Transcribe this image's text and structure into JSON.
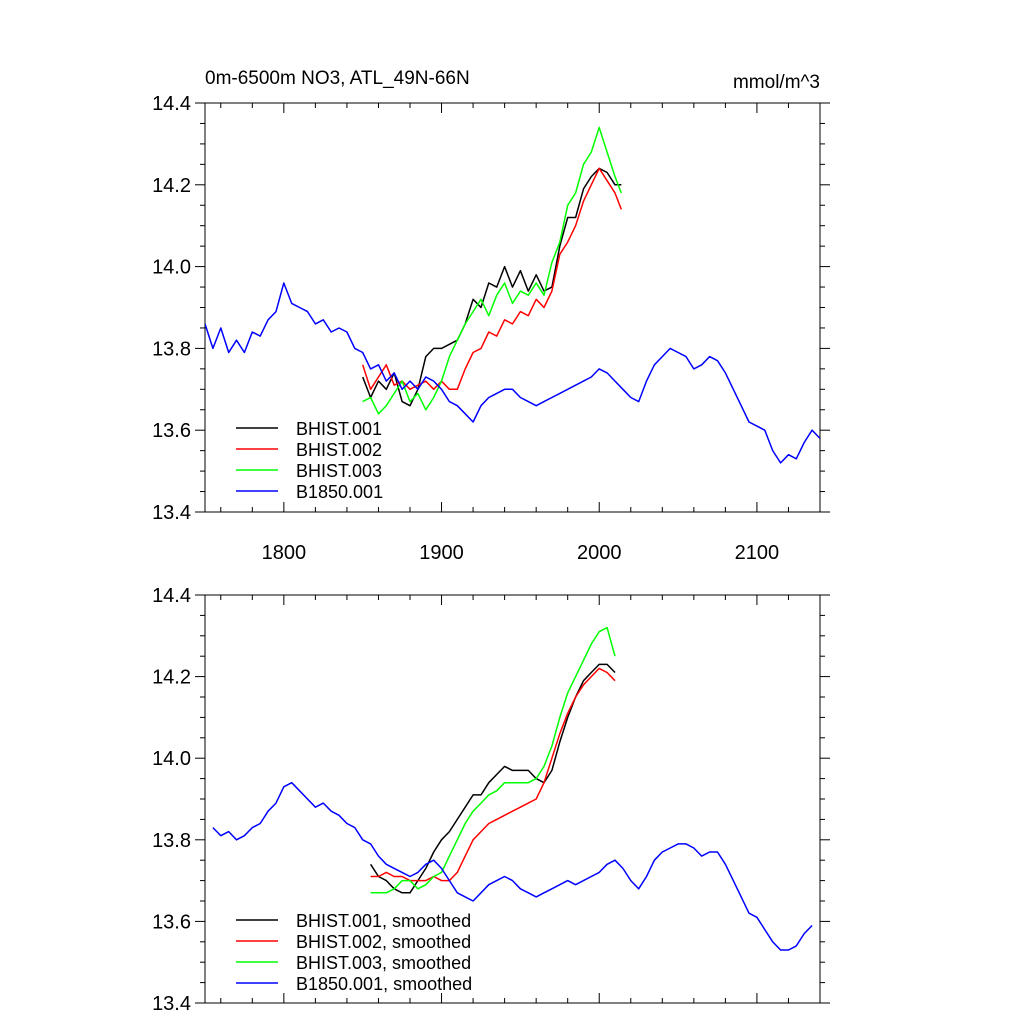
{
  "figure": {
    "title_left": "0m-6500m NO3, ATL_49N-66N",
    "title_right": "mmol/m^3"
  },
  "chart_data": [
    {
      "type": "line",
      "xlim": [
        1750,
        2140
      ],
      "ylim": [
        13.4,
        14.4
      ],
      "xticks": [
        1800,
        1900,
        2000,
        2100
      ],
      "xtick_labels": [
        "1800",
        "1900",
        "2000",
        "2100"
      ],
      "yticks": [
        13.4,
        13.6,
        13.8,
        14.0,
        14.2,
        14.4
      ],
      "ytick_labels": [
        "13.4",
        "13.6",
        "13.8",
        "14.0",
        "14.2",
        "14.4"
      ],
      "legend_position": "bottom-left",
      "series": [
        {
          "name": "BHIST.001",
          "color": "#000000",
          "x": [
            1850,
            1855,
            1860,
            1865,
            1870,
            1875,
            1880,
            1885,
            1890,
            1895,
            1900,
            1905,
            1910,
            1915,
            1920,
            1925,
            1930,
            1935,
            1940,
            1945,
            1950,
            1955,
            1960,
            1965,
            1970,
            1975,
            1980,
            1985,
            1990,
            1995,
            2000,
            2005,
            2010,
            2014
          ],
          "y": [
            13.73,
            13.68,
            13.72,
            13.7,
            13.74,
            13.67,
            13.66,
            13.7,
            13.78,
            13.8,
            13.8,
            13.81,
            13.82,
            13.86,
            13.92,
            13.9,
            13.96,
            13.95,
            14.0,
            13.95,
            13.99,
            13.94,
            13.98,
            13.94,
            13.95,
            14.05,
            14.12,
            14.12,
            14.19,
            14.22,
            14.24,
            14.23,
            14.2,
            14.2
          ]
        },
        {
          "name": "BHIST.002",
          "color": "#ff0000",
          "x": [
            1850,
            1855,
            1860,
            1865,
            1870,
            1875,
            1880,
            1885,
            1890,
            1895,
            1900,
            1905,
            1910,
            1915,
            1920,
            1925,
            1930,
            1935,
            1940,
            1945,
            1950,
            1955,
            1960,
            1965,
            1970,
            1975,
            1980,
            1985,
            1990,
            1995,
            2000,
            2005,
            2010,
            2014
          ],
          "y": [
            13.76,
            13.7,
            13.73,
            13.76,
            13.71,
            13.72,
            13.7,
            13.71,
            13.72,
            13.7,
            13.72,
            13.7,
            13.7,
            13.75,
            13.79,
            13.8,
            13.84,
            13.83,
            13.87,
            13.86,
            13.89,
            13.88,
            13.92,
            13.9,
            13.94,
            14.03,
            14.06,
            14.1,
            14.16,
            14.2,
            14.24,
            14.21,
            14.18,
            14.14
          ]
        },
        {
          "name": "BHIST.003",
          "color": "#00ff00",
          "x": [
            1850,
            1855,
            1860,
            1865,
            1870,
            1875,
            1880,
            1885,
            1890,
            1895,
            1900,
            1905,
            1910,
            1915,
            1920,
            1925,
            1930,
            1935,
            1940,
            1945,
            1950,
            1955,
            1960,
            1965,
            1970,
            1975,
            1980,
            1985,
            1990,
            1995,
            2000,
            2005,
            2010,
            2014
          ],
          "y": [
            13.67,
            13.68,
            13.64,
            13.66,
            13.69,
            13.72,
            13.67,
            13.69,
            13.65,
            13.68,
            13.72,
            13.78,
            13.82,
            13.86,
            13.89,
            13.92,
            13.88,
            13.93,
            13.96,
            13.91,
            13.94,
            13.93,
            13.96,
            13.93,
            14.01,
            14.06,
            14.15,
            14.18,
            14.25,
            14.28,
            14.34,
            14.28,
            14.22,
            14.18
          ]
        },
        {
          "name": "B1850.001",
          "color": "#0000ff",
          "x": [
            1750,
            1755,
            1760,
            1765,
            1770,
            1775,
            1780,
            1785,
            1790,
            1795,
            1800,
            1805,
            1810,
            1815,
            1820,
            1825,
            1830,
            1835,
            1840,
            1845,
            1850,
            1855,
            1860,
            1865,
            1870,
            1875,
            1880,
            1885,
            1890,
            1895,
            1900,
            1905,
            1910,
            1915,
            1920,
            1925,
            1930,
            1935,
            1940,
            1945,
            1950,
            1955,
            1960,
            1965,
            1970,
            1975,
            1980,
            1985,
            1990,
            1995,
            2000,
            2005,
            2010,
            2015,
            2020,
            2025,
            2030,
            2035,
            2040,
            2045,
            2050,
            2055,
            2060,
            2065,
            2070,
            2075,
            2080,
            2085,
            2090,
            2095,
            2100,
            2105,
            2110,
            2115,
            2120,
            2125,
            2130,
            2135,
            2140
          ],
          "y": [
            13.86,
            13.8,
            13.85,
            13.79,
            13.82,
            13.79,
            13.84,
            13.83,
            13.87,
            13.89,
            13.96,
            13.91,
            13.9,
            13.89,
            13.86,
            13.87,
            13.84,
            13.85,
            13.84,
            13.8,
            13.79,
            13.75,
            13.76,
            13.72,
            13.74,
            13.7,
            13.72,
            13.7,
            13.73,
            13.72,
            13.7,
            13.67,
            13.66,
            13.64,
            13.62,
            13.66,
            13.68,
            13.69,
            13.7,
            13.7,
            13.68,
            13.67,
            13.66,
            13.67,
            13.68,
            13.69,
            13.7,
            13.71,
            13.72,
            13.73,
            13.75,
            13.74,
            13.72,
            13.7,
            13.68,
            13.67,
            13.72,
            13.76,
            13.78,
            13.8,
            13.79,
            13.78,
            13.75,
            13.76,
            13.78,
            13.77,
            13.74,
            13.7,
            13.66,
            13.62,
            13.61,
            13.6,
            13.55,
            13.52,
            13.54,
            13.53,
            13.57,
            13.6,
            13.58
          ]
        }
      ]
    },
    {
      "type": "line",
      "xlim": [
        1750,
        2140
      ],
      "ylim": [
        13.4,
        14.4
      ],
      "xticks": [
        1800,
        1900,
        2000,
        2100
      ],
      "yticks": [
        13.4,
        13.6,
        13.8,
        14.0,
        14.2,
        14.4
      ],
      "ytick_labels": [
        "13.4",
        "13.6",
        "13.8",
        "14.0",
        "14.2",
        "14.4"
      ],
      "legend_position": "bottom-left",
      "series": [
        {
          "name": "BHIST.001, smoothed",
          "color": "#000000",
          "x": [
            1855,
            1860,
            1865,
            1870,
            1875,
            1880,
            1885,
            1890,
            1895,
            1900,
            1905,
            1910,
            1915,
            1920,
            1925,
            1930,
            1935,
            1940,
            1945,
            1950,
            1955,
            1960,
            1965,
            1970,
            1975,
            1980,
            1985,
            1990,
            1995,
            2000,
            2005,
            2010
          ],
          "y": [
            13.74,
            13.71,
            13.7,
            13.68,
            13.67,
            13.67,
            13.7,
            13.73,
            13.77,
            13.8,
            13.82,
            13.85,
            13.88,
            13.91,
            13.91,
            13.94,
            13.96,
            13.98,
            13.97,
            13.97,
            13.97,
            13.95,
            13.94,
            13.97,
            14.04,
            14.1,
            14.15,
            14.19,
            14.21,
            14.23,
            14.23,
            14.21
          ]
        },
        {
          "name": "BHIST.002, smoothed",
          "color": "#ff0000",
          "x": [
            1855,
            1860,
            1865,
            1870,
            1875,
            1880,
            1885,
            1890,
            1895,
            1900,
            1905,
            1910,
            1915,
            1920,
            1925,
            1930,
            1935,
            1940,
            1945,
            1950,
            1955,
            1960,
            1965,
            1970,
            1975,
            1980,
            1985,
            1990,
            1995,
            2000,
            2005,
            2010
          ],
          "y": [
            13.71,
            13.71,
            13.72,
            13.71,
            13.71,
            13.7,
            13.7,
            13.7,
            13.71,
            13.7,
            13.7,
            13.72,
            13.76,
            13.8,
            13.82,
            13.84,
            13.85,
            13.86,
            13.87,
            13.88,
            13.89,
            13.9,
            13.94,
            14.0,
            14.06,
            14.11,
            14.15,
            14.18,
            14.2,
            14.22,
            14.21,
            14.19
          ]
        },
        {
          "name": "BHIST.003, smoothed",
          "color": "#00ff00",
          "x": [
            1855,
            1860,
            1865,
            1870,
            1875,
            1880,
            1885,
            1890,
            1895,
            1900,
            1905,
            1910,
            1915,
            1920,
            1925,
            1930,
            1935,
            1940,
            1945,
            1950,
            1955,
            1960,
            1965,
            1970,
            1975,
            1980,
            1985,
            1990,
            1995,
            2000,
            2005,
            2010
          ],
          "y": [
            13.67,
            13.67,
            13.67,
            13.68,
            13.7,
            13.7,
            13.68,
            13.69,
            13.71,
            13.72,
            13.76,
            13.8,
            13.84,
            13.87,
            13.89,
            13.91,
            13.92,
            13.94,
            13.94,
            13.94,
            13.94,
            13.95,
            13.98,
            14.03,
            14.1,
            14.16,
            14.2,
            14.24,
            14.28,
            14.31,
            14.32,
            14.25
          ]
        },
        {
          "name": "B1850.001, smoothed",
          "color": "#0000ff",
          "x": [
            1755,
            1760,
            1765,
            1770,
            1775,
            1780,
            1785,
            1790,
            1795,
            1800,
            1805,
            1810,
            1815,
            1820,
            1825,
            1830,
            1835,
            1840,
            1845,
            1850,
            1855,
            1860,
            1865,
            1870,
            1875,
            1880,
            1885,
            1890,
            1895,
            1900,
            1905,
            1910,
            1915,
            1920,
            1925,
            1930,
            1935,
            1940,
            1945,
            1950,
            1955,
            1960,
            1965,
            1970,
            1975,
            1980,
            1985,
            1990,
            1995,
            2000,
            2005,
            2010,
            2015,
            2020,
            2025,
            2030,
            2035,
            2040,
            2045,
            2050,
            2055,
            2060,
            2065,
            2070,
            2075,
            2080,
            2085,
            2090,
            2095,
            2100,
            2105,
            2110,
            2115,
            2120,
            2125,
            2130,
            2135
          ],
          "y": [
            13.83,
            13.81,
            13.82,
            13.8,
            13.81,
            13.83,
            13.84,
            13.87,
            13.89,
            13.93,
            13.94,
            13.92,
            13.9,
            13.88,
            13.89,
            13.87,
            13.86,
            13.84,
            13.83,
            13.8,
            13.79,
            13.76,
            13.74,
            13.73,
            13.72,
            13.71,
            13.72,
            13.74,
            13.75,
            13.73,
            13.7,
            13.67,
            13.66,
            13.65,
            13.67,
            13.69,
            13.7,
            13.71,
            13.7,
            13.68,
            13.67,
            13.66,
            13.67,
            13.68,
            13.69,
            13.7,
            13.69,
            13.7,
            13.71,
            13.72,
            13.74,
            13.75,
            13.73,
            13.7,
            13.68,
            13.71,
            13.75,
            13.77,
            13.78,
            13.79,
            13.79,
            13.78,
            13.76,
            13.77,
            13.77,
            13.74,
            13.7,
            13.66,
            13.62,
            13.61,
            13.58,
            13.55,
            13.53,
            13.53,
            13.54,
            13.57,
            13.59
          ]
        }
      ]
    }
  ]
}
